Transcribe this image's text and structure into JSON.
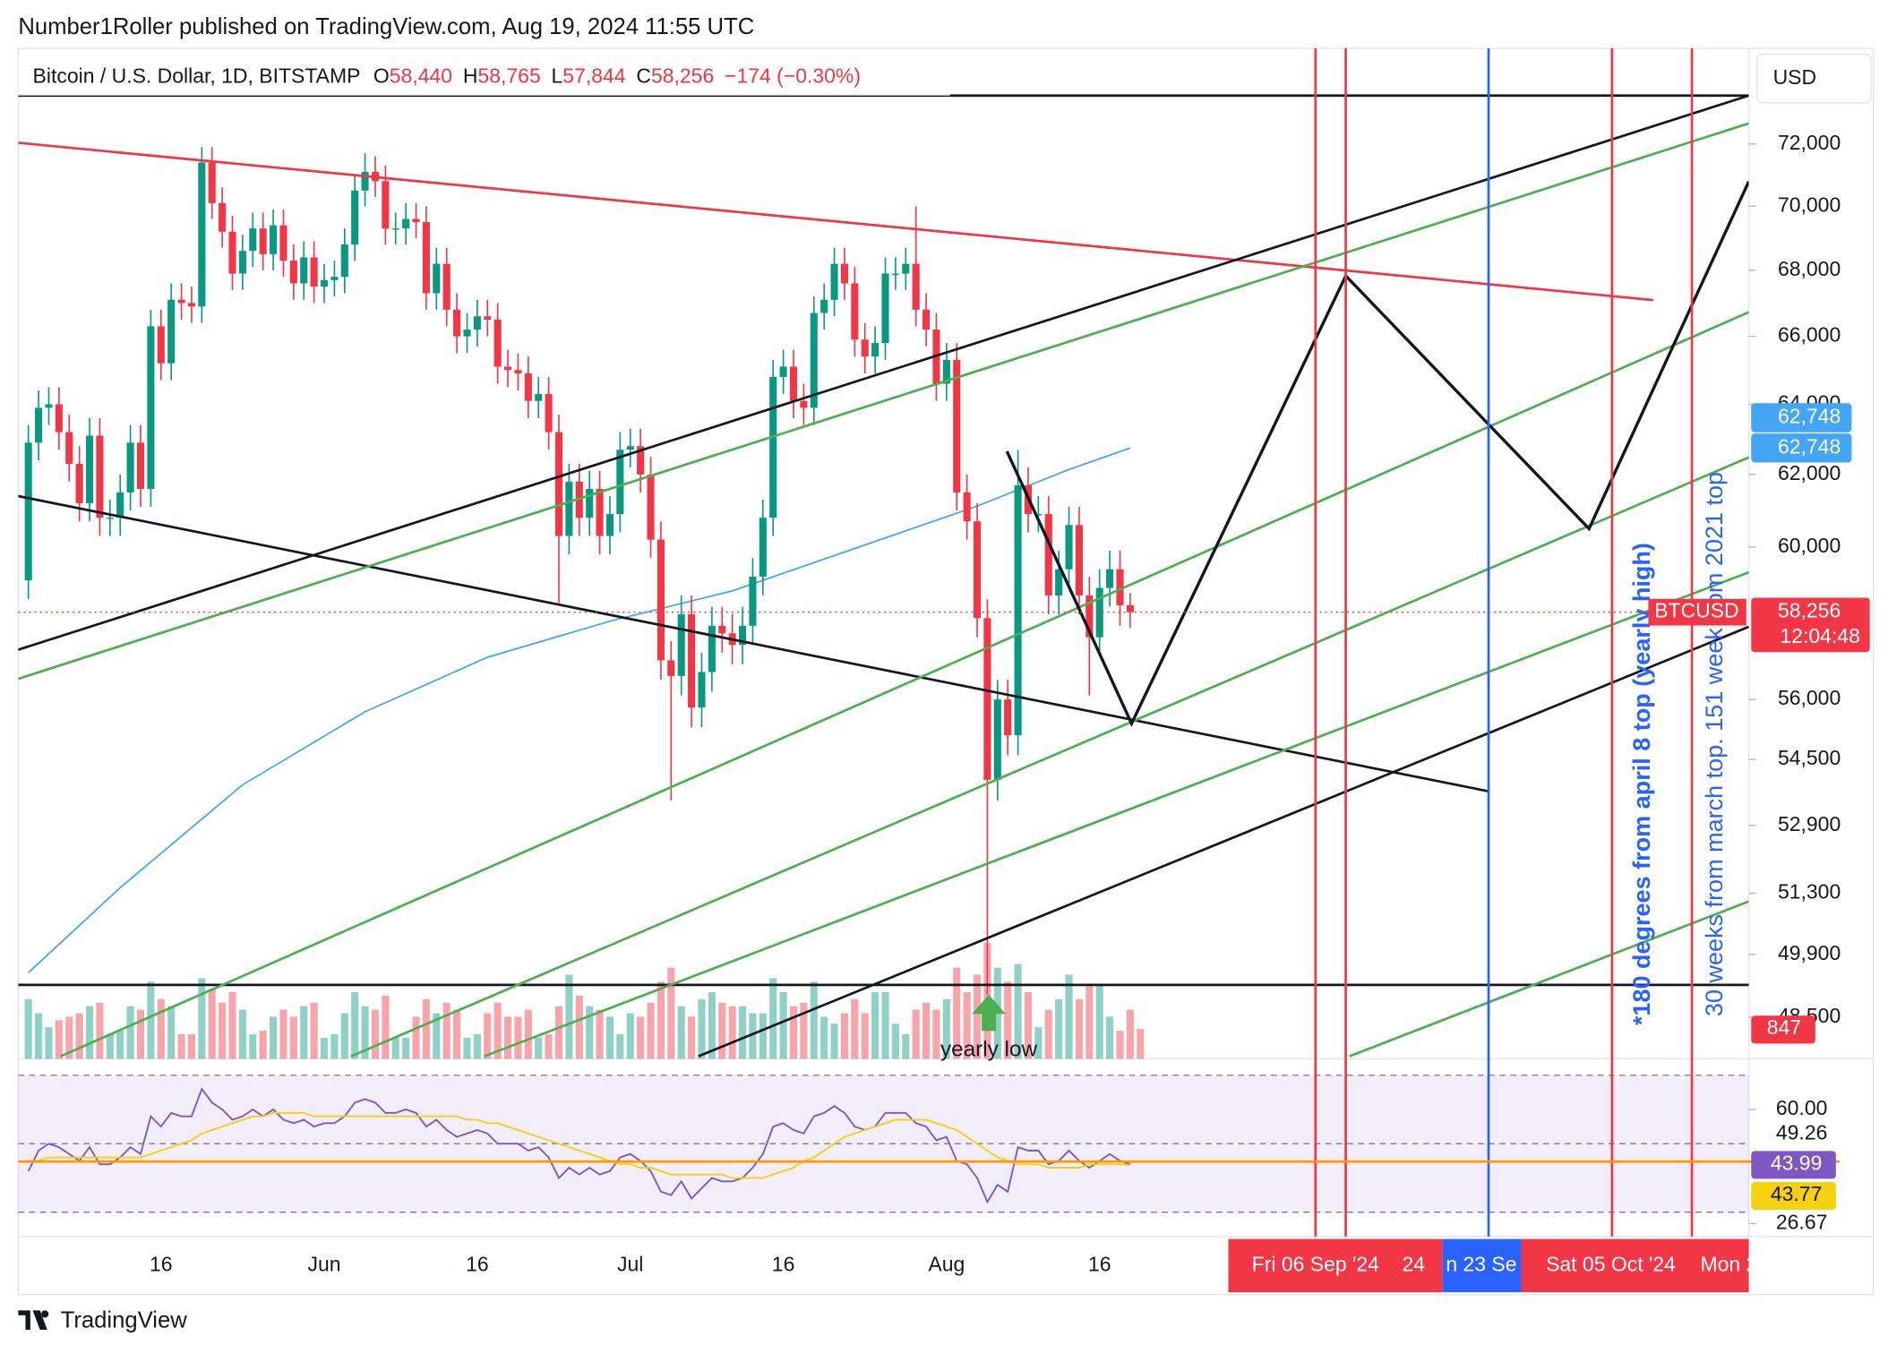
{
  "header": {
    "publisher": "Number1Roller published on TradingView.com, Aug 19, 2024 11:55 UTC",
    "symbol": "Bitcoin / U.S. Dollar, 1D, BITSTAMP",
    "ohlc": [
      {
        "key": "O",
        "value": "58,440"
      },
      {
        "key": "H",
        "value": "58,765"
      },
      {
        "key": "L",
        "value": "57,844"
      },
      {
        "key": "C",
        "value": "58,256"
      }
    ],
    "change": "−174 (−0.30%)",
    "brand": "TradingView"
  },
  "chart_data": [
    {
      "type": "candlestick",
      "name": "BTCUSD",
      "currency": "USD",
      "categories": [
        null,
        null,
        null,
        null,
        null,
        null,
        null,
        null,
        null,
        null,
        null,
        null,
        null,
        "16",
        null,
        null,
        null,
        null,
        null,
        null,
        null,
        null,
        null,
        null,
        null,
        null,
        null,
        null,
        null,
        "Jun",
        null,
        null,
        null,
        null,
        null,
        null,
        null,
        null,
        null,
        null,
        null,
        null,
        null,
        null,
        "16",
        null,
        null,
        null,
        null,
        null,
        null,
        null,
        null,
        null,
        null,
        null,
        null,
        null,
        null,
        "Jul",
        null,
        null,
        null,
        null,
        null,
        null,
        null,
        null,
        null,
        null,
        null,
        null,
        null,
        null,
        "16",
        null,
        null,
        null,
        null,
        null,
        null,
        null,
        null,
        null,
        null,
        null,
        null,
        null,
        null,
        null,
        "Aug",
        null,
        null,
        null,
        null,
        null,
        null,
        null,
        null,
        null,
        null,
        null,
        null,
        null,
        null,
        "16",
        null,
        null,
        null
      ],
      "open": [
        59100,
        62900,
        63900,
        64000,
        63200,
        62300,
        61200,
        63100,
        60800,
        60800,
        61500,
        62900,
        61600,
        66300,
        65200,
        67100,
        67000,
        66900,
        71400,
        70100,
        69200,
        67900,
        68600,
        69300,
        68500,
        69400,
        68300,
        67600,
        68400,
        67500,
        67700,
        67800,
        68800,
        70500,
        71100,
        70800,
        69300,
        69300,
        69600,
        69500,
        67300,
        68200,
        66800,
        66000,
        66200,
        66600,
        66500,
        65100,
        65000,
        64900,
        64100,
        64300,
        63200,
        60300,
        61800,
        60800,
        61600,
        60300,
        60900,
        62700,
        62800,
        62000,
        60200,
        57000,
        56600,
        58200,
        55800,
        56700,
        57900,
        57700,
        57400,
        57900,
        59200,
        60800,
        64800,
        65100,
        64100,
        63900,
        66700,
        67100,
        68200,
        67600,
        65900,
        65400,
        65800,
        67900,
        67900,
        68200,
        66800,
        66200,
        64600,
        65300,
        61500,
        60700,
        58100,
        54000,
        56000,
        55100,
        61700,
        60900,
        60900,
        58700,
        59400,
        60600,
        58700,
        57600,
        58900,
        59400,
        58440
      ],
      "high": [
        63400,
        64400,
        64500,
        64500,
        63700,
        62800,
        63600,
        63600,
        61300,
        62000,
        63400,
        63400,
        66800,
        66800,
        67600,
        67600,
        67500,
        71900,
        71900,
        70600,
        69700,
        69100,
        69800,
        69800,
        69900,
        69900,
        68800,
        68900,
        68900,
        68200,
        68300,
        69300,
        71000,
        71700,
        71600,
        71300,
        69800,
        70100,
        70100,
        70000,
        68700,
        68700,
        67300,
        66700,
        67100,
        67100,
        67000,
        65600,
        65500,
        65400,
        64800,
        64800,
        63700,
        62300,
        62300,
        62100,
        62100,
        61400,
        63200,
        63300,
        63300,
        62500,
        60700,
        57500,
        58700,
        58700,
        57200,
        58400,
        58400,
        58200,
        58400,
        59700,
        61300,
        65300,
        65600,
        65600,
        64600,
        67200,
        67600,
        68700,
        68700,
        68100,
        66400,
        66300,
        68400,
        68400,
        68700,
        70000,
        67300,
        66700,
        65800,
        65800,
        62000,
        61200,
        58600,
        56500,
        56500,
        62700,
        62200,
        61400,
        61400,
        59900,
        61100,
        61100,
        59200,
        59400,
        59900,
        59900,
        58765
      ],
      "low": [
        58600,
        62400,
        63400,
        62700,
        61800,
        60700,
        60700,
        60300,
        60300,
        60300,
        61000,
        61100,
        61100,
        64700,
        64700,
        66500,
        66400,
        66400,
        69600,
        68700,
        67400,
        67400,
        68100,
        68000,
        68000,
        67800,
        67100,
        67100,
        67000,
        67000,
        67200,
        67300,
        68300,
        70000,
        70300,
        68800,
        68800,
        68800,
        69000,
        66800,
        66800,
        66300,
        65500,
        65500,
        65700,
        66000,
        64600,
        64500,
        64400,
        63600,
        63600,
        62700,
        58500,
        59800,
        60300,
        60300,
        59800,
        59800,
        60400,
        62200,
        61500,
        59700,
        56500,
        53500,
        56100,
        55300,
        55300,
        56200,
        57200,
        56900,
        56900,
        57400,
        58700,
        60300,
        64300,
        63600,
        63400,
        63400,
        66200,
        66600,
        67100,
        65400,
        64900,
        64900,
        65300,
        67400,
        67400,
        66300,
        65700,
        64100,
        64100,
        61000,
        60200,
        57600,
        49000,
        53500,
        54600,
        54600,
        60400,
        60400,
        58200,
        58200,
        58900,
        58200,
        56100,
        57100,
        58400,
        57900,
        57844
      ],
      "close": [
        62900,
        63900,
        64000,
        63200,
        62300,
        61200,
        63100,
        60800,
        60800,
        61500,
        62900,
        61600,
        66300,
        65200,
        67100,
        67000,
        66900,
        71400,
        70100,
        69200,
        67900,
        68600,
        69300,
        68500,
        69400,
        68300,
        67600,
        68400,
        67500,
        67700,
        67800,
        68800,
        70500,
        71100,
        70800,
        69300,
        69300,
        69600,
        69500,
        67300,
        68200,
        66800,
        66000,
        66200,
        66600,
        66500,
        65100,
        65000,
        64900,
        64100,
        64300,
        63200,
        60300,
        61800,
        60800,
        61600,
        60300,
        60900,
        62700,
        62800,
        62000,
        60200,
        57000,
        56600,
        58200,
        55800,
        56700,
        57900,
        57700,
        57400,
        57900,
        59200,
        60800,
        64800,
        65100,
        64100,
        63900,
        66700,
        67100,
        68200,
        67600,
        65900,
        65400,
        65800,
        67900,
        67900,
        68200,
        66800,
        66200,
        64600,
        65300,
        61500,
        60700,
        58100,
        54000,
        56000,
        55100,
        61700,
        60900,
        60900,
        58700,
        59400,
        60600,
        58700,
        57600,
        58900,
        59400,
        58440,
        58256
      ],
      "up_color": "#089981",
      "down_color": "#f23645",
      "ylim": [
        47600,
        75100
      ],
      "log_scale": true,
      "yticks": [
        {
          "value": 48500,
          "label": "48,500"
        },
        {
          "value": 49900,
          "label": "49,900"
        },
        {
          "value": 51300,
          "label": "51,300"
        },
        {
          "value": 52900,
          "label": "52,900"
        },
        {
          "value": 54500,
          "label": "54,500"
        },
        {
          "value": 56000,
          "label": "56,000"
        },
        {
          "value": 60000,
          "label": "60,000"
        },
        {
          "value": 62000,
          "label": "62,000"
        },
        {
          "value": 64000,
          "label": "64,000"
        },
        {
          "value": 66000,
          "label": "66,000"
        },
        {
          "value": 68000,
          "label": "68,000"
        },
        {
          "value": 70000,
          "label": "70,000"
        },
        {
          "value": 72000,
          "label": "72,000"
        }
      ],
      "last_label": {
        "value": 58256,
        "label": "58,256",
        "countdown": "12:04:48"
      },
      "volume": {
        "values": [
          1700,
          1300,
          900,
          1100,
          1200,
          1300,
          1500,
          1600,
          700,
          800,
          1500,
          1400,
          2200,
          1700,
          1500,
          700,
          700,
          2300,
          2000,
          1600,
          1900,
          1400,
          700,
          800,
          1200,
          1400,
          1200,
          1500,
          1600,
          600,
          700,
          1300,
          1900,
          1500,
          1400,
          1800,
          600,
          600,
          1200,
          1700,
          1300,
          1600,
          1400,
          600,
          700,
          1300,
          1600,
          1200,
          1200,
          1400,
          600,
          700,
          1500,
          2400,
          1800,
          1500,
          1400,
          1200,
          700,
          1300,
          1200,
          1600,
          2200,
          2600,
          1500,
          1200,
          1700,
          1900,
          1600,
          1500,
          1500,
          1300,
          1300,
          2300,
          1900,
          1500,
          1600,
          2200,
          1200,
          1000,
          1300,
          1700,
          1300,
          1900,
          1900,
          1000,
          700,
          1400,
          1600,
          1400,
          1700,
          2600,
          1900,
          2400,
          3300,
          2600,
          2200,
          2700,
          1900,
          900,
          1400,
          1700,
          2400,
          1700,
          2100,
          2100,
          1200,
          800,
          1400,
          847
        ],
        "ylim": [
          0,
          3800
        ]
      },
      "ma": {
        "color": "#42a5f5",
        "x": [
          0,
          9,
          21,
          33,
          45,
          57,
          69,
          81,
          93,
          102,
          108
        ],
        "values": [
          49490,
          51430,
          53880,
          55690,
          57080,
          58020,
          58820,
          59960,
          61120,
          62140,
          62748
        ],
        "labels": [
          {
            "value": 62748,
            "label": "62,748"
          },
          {
            "value": 62748,
            "label": "62,748"
          }
        ]
      },
      "annotations": [
        "yearly low",
        "*180 degrees from april 8 top (yearly high)",
        "30 weeks from march top. 151 week from 2021 top"
      ],
      "date_labels": [
        "Fri 06 Sep '24",
        "24",
        "n 23 Se",
        "Sat 05 Oct '24",
        "Mon 2"
      ]
    },
    {
      "type": "line",
      "series": [
        {
          "color": "#7e57c2",
          "values": [
            42,
            48,
            50,
            49,
            47,
            45,
            49,
            44,
            44,
            46,
            49,
            47,
            58,
            55,
            59,
            58,
            58,
            66,
            62,
            60,
            57,
            58,
            60,
            58,
            60,
            57,
            56,
            57,
            55,
            56,
            56,
            58,
            62,
            63,
            62,
            59,
            59,
            60,
            59,
            55,
            57,
            54,
            52,
            53,
            54,
            53,
            50,
            50,
            50,
            48,
            49,
            46,
            40,
            43,
            41,
            43,
            41,
            42,
            46,
            47,
            45,
            42,
            36,
            35,
            39,
            34,
            37,
            40,
            39,
            39,
            40,
            43,
            47,
            55,
            56,
            54,
            53,
            58,
            59,
            61,
            59,
            55,
            54,
            55,
            59,
            59,
            59,
            56,
            55,
            51,
            52,
            45,
            44,
            40,
            33,
            38,
            36,
            49,
            48,
            48,
            44,
            45,
            48,
            45,
            43,
            45,
            47,
            45,
            43.99
          ]
        },
        {
          "color": "#f5d10f",
          "values": [
            45,
            45,
            46,
            46,
            46,
            46,
            46,
            46,
            46,
            46,
            46,
            46,
            47,
            48,
            49,
            50,
            51,
            53,
            54,
            55,
            56,
            57,
            58,
            58,
            59,
            59,
            59,
            59,
            58,
            58,
            58,
            58,
            58,
            58,
            58,
            58,
            58,
            58,
            58,
            58,
            58,
            58,
            58,
            57,
            57,
            56,
            56,
            55,
            54,
            53,
            52,
            51,
            50,
            49,
            48,
            47,
            46,
            45,
            44,
            44,
            43,
            43,
            42,
            41,
            41,
            41,
            41,
            41,
            41,
            40,
            40,
            40,
            40,
            41,
            42,
            43,
            45,
            46,
            48,
            50,
            52,
            53,
            54,
            55,
            56,
            57,
            57,
            57,
            57,
            56,
            55,
            54,
            52,
            50,
            48,
            46,
            45,
            44,
            44,
            44,
            43,
            43,
            43,
            43,
            44,
            44,
            44,
            44,
            43.77
          ]
        }
      ],
      "ylim": [
        25,
        72
      ],
      "yticks": [
        {
          "value": 60,
          "label": "60.00"
        },
        26.67
      ],
      "levels": [
        70,
        50,
        30
      ],
      "extra_label": 49.26
    }
  ]
}
